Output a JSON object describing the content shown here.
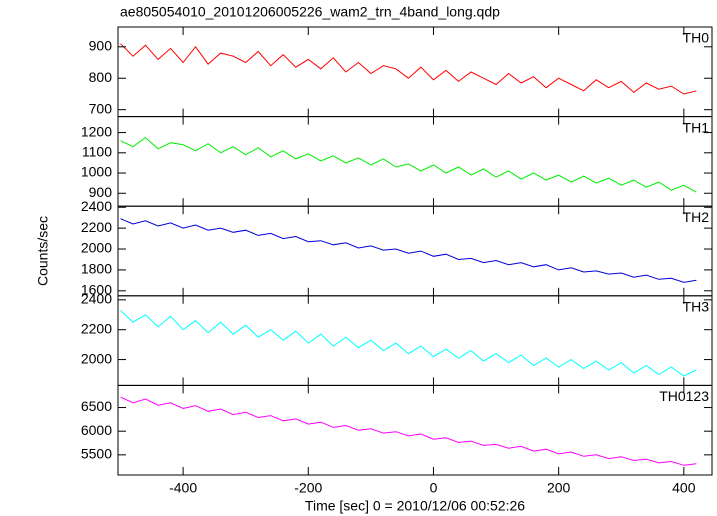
{
  "chart_data": [
    {
      "type": "line",
      "title": "ae805054010_20101206005226_wam2_trn_4band_long.qdp",
      "x": [
        -500,
        -480,
        -460,
        -440,
        -420,
        -400,
        -380,
        -360,
        -340,
        -320,
        -300,
        -280,
        -260,
        -240,
        -220,
        -200,
        -180,
        -160,
        -140,
        -120,
        -100,
        -80,
        -60,
        -40,
        -20,
        0,
        20,
        40,
        60,
        80,
        100,
        120,
        140,
        160,
        180,
        200,
        220,
        240,
        260,
        280,
        300,
        320,
        340,
        360,
        380,
        400,
        420
      ],
      "xlim": [
        -504,
        445
      ],
      "xticks": [
        -400,
        -200,
        0,
        200,
        400
      ],
      "ylim": [
        678,
        963
      ],
      "yticks": [
        700,
        800,
        900
      ],
      "series": [
        {
          "name": "TH0",
          "color": "#ff0000",
          "values": [
            910,
            870,
            905,
            860,
            895,
            850,
            900,
            845,
            880,
            870,
            850,
            885,
            840,
            875,
            835,
            860,
            830,
            865,
            820,
            850,
            815,
            840,
            830,
            800,
            835,
            795,
            825,
            790,
            820,
            800,
            780,
            815,
            785,
            805,
            770,
            800,
            780,
            760,
            795,
            770,
            790,
            755,
            785,
            765,
            775,
            750,
            760
          ]
        }
      ]
    },
    {
      "type": "line",
      "x": [
        -500,
        -480,
        -460,
        -440,
        -420,
        -400,
        -380,
        -360,
        -340,
        -320,
        -300,
        -280,
        -260,
        -240,
        -220,
        -200,
        -180,
        -160,
        -140,
        -120,
        -100,
        -80,
        -60,
        -40,
        -20,
        0,
        20,
        40,
        60,
        80,
        100,
        120,
        140,
        160,
        180,
        200,
        220,
        240,
        260,
        280,
        300,
        320,
        340,
        360,
        380,
        400,
        420
      ],
      "xlim": [
        -504,
        445
      ],
      "xticks": [
        -400,
        -200,
        0,
        200,
        400
      ],
      "ylim": [
        836,
        1279
      ],
      "yticks": [
        900,
        1000,
        1100,
        1200
      ],
      "series": [
        {
          "name": "TH1",
          "color": "#00ee00",
          "values": [
            1160,
            1130,
            1175,
            1120,
            1150,
            1140,
            1110,
            1145,
            1100,
            1130,
            1090,
            1125,
            1080,
            1110,
            1070,
            1095,
            1060,
            1085,
            1050,
            1075,
            1040,
            1070,
            1030,
            1045,
            1010,
            1040,
            1000,
            1030,
            990,
            1020,
            980,
            1010,
            970,
            1000,
            965,
            990,
            955,
            985,
            950,
            975,
            940,
            965,
            930,
            955,
            915,
            940,
            905
          ]
        }
      ]
    },
    {
      "type": "line",
      "y_label": "Counts/sec",
      "x": [
        -500,
        -480,
        -460,
        -440,
        -420,
        -400,
        -380,
        -360,
        -340,
        -320,
        -300,
        -280,
        -260,
        -240,
        -220,
        -200,
        -180,
        -160,
        -140,
        -120,
        -100,
        -80,
        -60,
        -40,
        -20,
        0,
        20,
        40,
        60,
        80,
        100,
        120,
        140,
        160,
        180,
        200,
        220,
        240,
        260,
        280,
        300,
        320,
        340,
        360,
        380,
        400,
        420
      ],
      "xlim": [
        -504,
        445
      ],
      "xticks": [
        -400,
        -200,
        0,
        200,
        400
      ],
      "ylim": [
        1552,
        2410
      ],
      "yticks": [
        1600,
        1800,
        2000,
        2200,
        2400
      ],
      "series": [
        {
          "name": "TH2",
          "color": "#0000dd",
          "values": [
            2290,
            2240,
            2270,
            2220,
            2250,
            2200,
            2230,
            2180,
            2200,
            2160,
            2180,
            2130,
            2150,
            2100,
            2120,
            2070,
            2080,
            2040,
            2060,
            2010,
            2030,
            1990,
            2000,
            1960,
            1980,
            1930,
            1950,
            1900,
            1910,
            1870,
            1890,
            1850,
            1870,
            1830,
            1850,
            1800,
            1820,
            1780,
            1790,
            1760,
            1770,
            1730,
            1750,
            1710,
            1720,
            1680,
            1700
          ]
        }
      ]
    },
    {
      "type": "line",
      "x": [
        -500,
        -480,
        -460,
        -440,
        -420,
        -400,
        -380,
        -360,
        -340,
        -320,
        -300,
        -280,
        -260,
        -240,
        -220,
        -200,
        -180,
        -160,
        -140,
        -120,
        -100,
        -80,
        -60,
        -40,
        -20,
        0,
        20,
        40,
        60,
        80,
        100,
        120,
        140,
        160,
        180,
        200,
        220,
        240,
        260,
        280,
        300,
        320,
        340,
        360,
        380,
        400,
        420
      ],
      "xlim": [
        -504,
        445
      ],
      "xticks": [
        -400,
        -200,
        0,
        200,
        400
      ],
      "ylim": [
        1827,
        2427
      ],
      "yticks": [
        2000,
        2200,
        2400
      ],
      "series": [
        {
          "name": "TH3",
          "color": "#00ffff",
          "values": [
            2330,
            2250,
            2300,
            2220,
            2290,
            2200,
            2260,
            2180,
            2250,
            2170,
            2230,
            2150,
            2200,
            2130,
            2190,
            2110,
            2170,
            2090,
            2150,
            2080,
            2130,
            2060,
            2110,
            2040,
            2090,
            2020,
            2070,
            2010,
            2060,
            1990,
            2040,
            1980,
            2030,
            1960,
            2010,
            1950,
            2000,
            1940,
            1990,
            1930,
            1980,
            1910,
            1960,
            1900,
            1950,
            1890,
            1930
          ]
        }
      ]
    },
    {
      "type": "line",
      "x_label": "Time [sec] 0 = 2010/12/06 00:52:26",
      "x": [
        -500,
        -480,
        -460,
        -440,
        -420,
        -400,
        -380,
        -360,
        -340,
        -320,
        -300,
        -280,
        -260,
        -240,
        -220,
        -200,
        -180,
        -160,
        -140,
        -120,
        -100,
        -80,
        -60,
        -40,
        -20,
        0,
        20,
        40,
        60,
        80,
        100,
        120,
        140,
        160,
        180,
        200,
        220,
        240,
        260,
        280,
        300,
        320,
        340,
        360,
        380,
        400,
        420
      ],
      "xlim": [
        -504,
        445
      ],
      "xticks": [
        -400,
        -200,
        0,
        200,
        400
      ],
      "ylim": [
        5074,
        6968
      ],
      "yticks": [
        5500,
        6000,
        6500
      ],
      "series": [
        {
          "name": "TH0123",
          "color": "#ff00ff",
          "values": [
            6720,
            6600,
            6680,
            6550,
            6600,
            6480,
            6540,
            6420,
            6470,
            6350,
            6400,
            6290,
            6330,
            6220,
            6260,
            6150,
            6190,
            6080,
            6120,
            6020,
            6050,
            5960,
            5990,
            5900,
            5940,
            5830,
            5860,
            5760,
            5790,
            5700,
            5720,
            5640,
            5680,
            5580,
            5620,
            5520,
            5560,
            5470,
            5500,
            5420,
            5460,
            5380,
            5410,
            5330,
            5360,
            5280,
            5310
          ]
        }
      ]
    }
  ]
}
